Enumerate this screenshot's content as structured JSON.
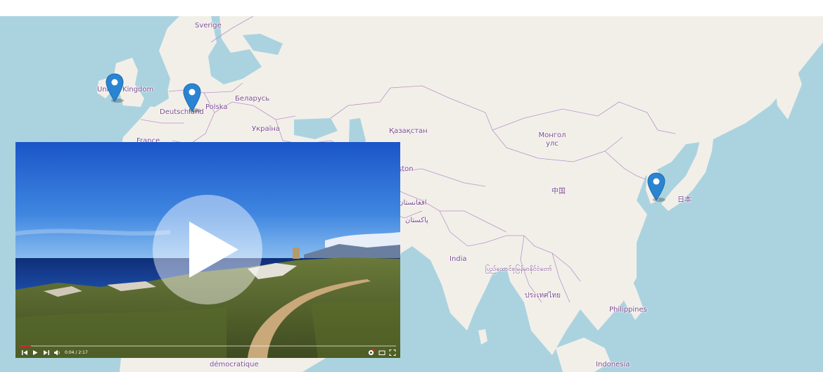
{
  "map": {
    "labels": {
      "sverige": "Sverige",
      "united_kingdom": "United Kingdom",
      "deutschland": "Deutschland",
      "polska": "Polska",
      "belarus": "Беларусь",
      "ukraina": "Україна",
      "france": "France",
      "kazakhstan": "Қазақстан",
      "mongolia_line1": "Монгол",
      "mongolia_line2": "улс",
      "stan_fragment": "ston",
      "afghanistan": "افغانستان",
      "pakistan": "پاکستان",
      "china": "中国",
      "japan": "日本",
      "india": "India",
      "myanmar": "ပြည်ထောင်စုမြန်မာနိုင်ငံတော်",
      "thailand": "ประเทศไทย",
      "philippines": "Philippines",
      "indonesia": "Indonesia",
      "congo": "démocratique"
    },
    "markers": [
      {
        "name": "marker-united-kingdom",
        "color": "#2a84d2"
      },
      {
        "name": "marker-deutschland",
        "color": "#2a84d2"
      },
      {
        "name": "marker-korea",
        "color": "#2a84d2"
      }
    ],
    "colors": {
      "water": "#aad3df",
      "land": "#f2efe9",
      "border": "#b994c9"
    }
  },
  "video": {
    "current_time": "0:04",
    "separator": " / ",
    "duration": "2:17",
    "progress": 0.03,
    "icons": {
      "prev": "skip-previous-icon",
      "play": "play-icon",
      "next": "skip-next-icon",
      "volume": "volume-icon",
      "settings": "settings-icon",
      "miniplayer": "miniplayer-icon",
      "fullscreen": "fullscreen-icon",
      "big_play": "play-button-icon"
    }
  }
}
